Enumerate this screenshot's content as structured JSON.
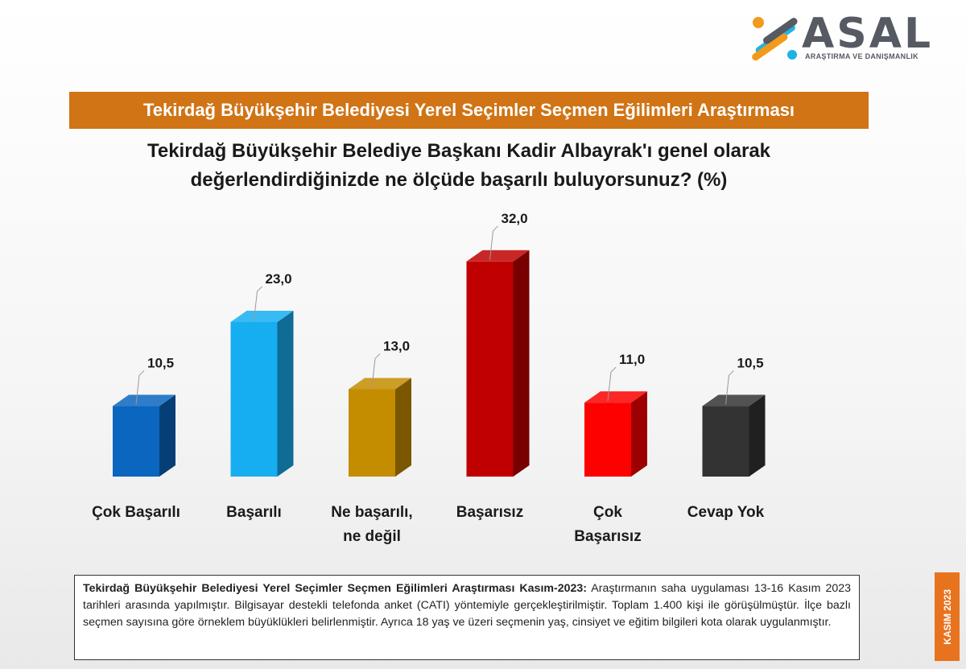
{
  "brand": {
    "name": "ASAL",
    "tagline": "ARAŞTIRMA VE DANIŞMANLIK"
  },
  "banner": {
    "title": "Tekirdağ Büyükşehir Belediyesi Yerel Seçimler Seçmen Eğilimleri Araştırması",
    "color": "#d07416"
  },
  "question": {
    "line1": "Tekirdağ Büyükşehir Belediye Başkanı Kadir Albayrak'ı genel olarak",
    "line2": "değerlendirdiğinizde ne ölçüde başarılı buluyorsunuz? (%)"
  },
  "chart_data": {
    "type": "bar",
    "style": "3d-column",
    "categories": [
      [
        "Çok Başarılı"
      ],
      [
        "Başarılı"
      ],
      [
        "Ne başarılı,",
        "ne değil"
      ],
      [
        "Başarısız"
      ],
      [
        "Çok",
        "Başarısız"
      ],
      [
        "Cevap Yok"
      ]
    ],
    "values": [
      10.5,
      23.0,
      13.0,
      32.0,
      11.0,
      10.5
    ],
    "data_labels": [
      "10,5",
      "23,0",
      "13,0",
      "32,0",
      "11,0",
      "10,5"
    ],
    "colors": [
      "#0a66bf",
      "#16aef0",
      "#c48d00",
      "#c00000",
      "#fd0000",
      "#333333"
    ],
    "grid": false,
    "legend": "none"
  },
  "footnote": {
    "heading": "Tekirdağ Büyükşehir Belediyesi Yerel Seçimler Seçmen Eğilimleri Araştırması Kasım-2023:",
    "body": " Araştırmanın saha uygulaması 13-16 Kasım 2023 tarihleri arasında yapılmıştır. Bilgisayar destekli telefonda anket (CATI) yöntemiyle gerçekleştirilmiştir. Toplam 1.400 kişi ile görüşülmüştür. İlçe bazlı seçmen sayısına göre örneklem büyüklükleri belirlenmiştir. Ayrıca 18 yaş ve üzeri seçmenin yaş, cinsiyet ve eğitim bilgileri kota olarak uygulanmıştır."
  },
  "side_tag": {
    "text": "KASIM 2023",
    "color": "#e8731e"
  }
}
